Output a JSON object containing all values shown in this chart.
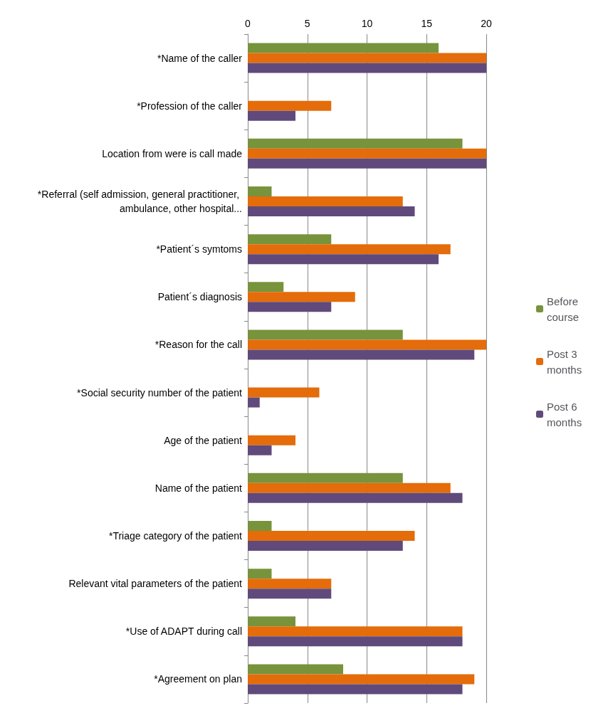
{
  "chart_data": {
    "type": "bar",
    "orientation": "horizontal",
    "categories": [
      "*Name of the caller",
      "*Profession of the caller",
      "Location from were is call made",
      "*Referral (self admission, general practitioner, ambulance, other hospital...",
      "*Patient´s symtoms",
      "Patient´s diagnosis",
      "*Reason for the call",
      "*Social security number of the patient",
      "Age of the patient",
      "Name of the patient",
      "*Triage category of the patient",
      "Relevant vital parameters of the patient",
      "*Use of ADAPT during call",
      "*Agreement on plan"
    ],
    "series": [
      {
        "name": "Before course",
        "color": "#77933c",
        "values": [
          16,
          0,
          18,
          2,
          7,
          3,
          13,
          0,
          0,
          13,
          2,
          2,
          4,
          8
        ]
      },
      {
        "name": "Post 3 months",
        "color": "#e46c0a",
        "values": [
          20,
          7,
          20,
          13,
          17,
          9,
          20,
          6,
          4,
          17,
          14,
          7,
          18,
          19
        ]
      },
      {
        "name": "Post 6 months",
        "color": "#604a7b",
        "values": [
          20,
          4,
          20,
          14,
          16,
          7,
          19,
          1,
          2,
          18,
          13,
          7,
          18,
          18
        ]
      }
    ],
    "xlim": [
      0,
      20
    ],
    "xticks": [
      0,
      5,
      10,
      15,
      20
    ],
    "grid": "x",
    "legend": "right"
  }
}
